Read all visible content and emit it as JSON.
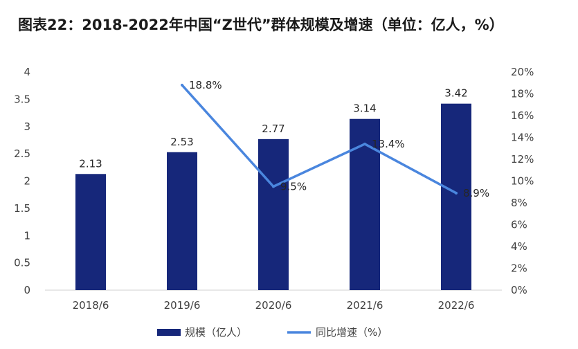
{
  "chart_data": {
    "type": "bar+line",
    "title": "图表22：2018-2022年中国“Z世代”群体规模及增速（单位：亿人，%）",
    "categories": [
      "2018/6",
      "2019/6",
      "2020/6",
      "2021/6",
      "2022/6"
    ],
    "series": [
      {
        "name": "规模（亿人）",
        "type": "bar",
        "axis": "left",
        "color": "#16277a",
        "values": [
          2.13,
          2.53,
          2.77,
          3.14,
          3.42
        ],
        "labels": [
          "2.13",
          "2.53",
          "2.77",
          "3.14",
          "3.42"
        ]
      },
      {
        "name": "同比增速（%）",
        "type": "line",
        "axis": "right",
        "color": "#4a86de",
        "values": [
          null,
          18.8,
          9.5,
          13.4,
          8.9
        ],
        "labels": [
          "",
          "18.8%",
          "9.5%",
          "13.4%",
          "8.9%"
        ]
      }
    ],
    "y_left": {
      "min": 0,
      "max": 4,
      "step": 0.5,
      "ticks": [
        "0",
        "0.5",
        "1",
        "1.5",
        "2",
        "2.5",
        "3",
        "3.5",
        "4"
      ]
    },
    "y_right": {
      "min": 0,
      "max": 20,
      "step": 2,
      "ticks": [
        "0%",
        "2%",
        "4%",
        "6%",
        "8%",
        "10%",
        "12%",
        "14%",
        "16%",
        "18%",
        "20%"
      ]
    },
    "grid": false,
    "legend_position": "bottom"
  }
}
